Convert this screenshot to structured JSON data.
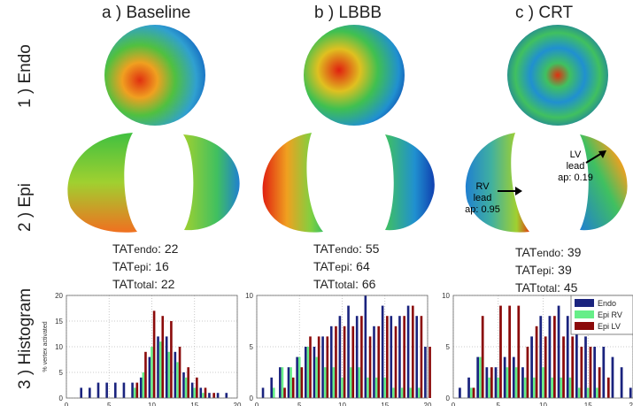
{
  "columns": [
    {
      "heading": "a ) Baseline",
      "tat": {
        "endo": "22",
        "epi": "16",
        "total": "22"
      }
    },
    {
      "heading": "b ) LBBB",
      "tat": {
        "endo": "55",
        "epi": "64",
        "total": "66"
      }
    },
    {
      "heading": "c ) CRT",
      "tat": {
        "endo": "39",
        "epi": "39",
        "total": "45"
      }
    }
  ],
  "rows": [
    "1 ) Endo",
    "2 ) Epi",
    "3 ) Histogram"
  ],
  "tat_prefix": "TAT",
  "tat_sub": {
    "endo": "endo",
    "epi": "epi",
    "total": "total"
  },
  "annotations": {
    "rv_lead": [
      "RV",
      "lead",
      "ap: 0.95"
    ],
    "lv_lead": [
      "LV",
      "lead",
      "ap: 0.19"
    ]
  },
  "histogram": {
    "ylabel": "% vertex activated",
    "legend": [
      "Endo",
      "Epi RV",
      "Epi LV"
    ],
    "colors": {
      "endo": "#1a237e",
      "epi_rv": "#66ee88",
      "epi_lv": "#8b0a0a"
    }
  },
  "chart_data": [
    {
      "type": "bar",
      "x": [
        2,
        3,
        4,
        5,
        6,
        7,
        8,
        9,
        10,
        11,
        12,
        13,
        14,
        15,
        16,
        17,
        18,
        19,
        20
      ],
      "xlim": [
        0,
        20
      ],
      "xticks": [
        0,
        5,
        10,
        15,
        20
      ],
      "ylim": [
        0,
        20
      ],
      "yticks": [
        0,
        5,
        10,
        15,
        20
      ],
      "ylabel": "% vertex activated",
      "series": [
        {
          "name": "Endo",
          "values": [
            2,
            2,
            3,
            3,
            3,
            3,
            3,
            4,
            8,
            12,
            12,
            9,
            5,
            3,
            2,
            1,
            1,
            1,
            0
          ]
        },
        {
          "name": "Epi RV",
          "values": [
            0,
            0,
            0,
            0,
            0,
            0,
            2,
            5,
            10,
            11,
            9,
            7,
            4,
            2,
            1,
            0,
            0,
            0,
            0
          ]
        },
        {
          "name": "Epi LV",
          "values": [
            0,
            0,
            0,
            0,
            0,
            0,
            3,
            9,
            17,
            16,
            15,
            10,
            6,
            4,
            2,
            1,
            0,
            0,
            0
          ]
        }
      ]
    },
    {
      "type": "bar",
      "x": [
        1,
        2,
        3,
        4,
        5,
        6,
        7,
        8,
        9,
        10,
        11,
        12,
        13,
        14,
        15,
        16,
        17,
        18,
        19,
        20
      ],
      "xlim": [
        0,
        20
      ],
      "xticks": [
        0,
        5,
        10,
        15,
        20
      ],
      "ylim": [
        0,
        10
      ],
      "yticks": [
        0,
        5,
        10
      ],
      "series": [
        {
          "name": "Endo",
          "values": [
            1,
            2,
            3,
            3,
            4,
            5,
            5,
            6,
            7,
            8,
            9,
            8,
            10,
            7,
            9,
            8,
            8,
            9,
            8,
            5
          ]
        },
        {
          "name": "Epi RV",
          "values": [
            0,
            1,
            3,
            3,
            4,
            5,
            4,
            3,
            3,
            2,
            3,
            3,
            2,
            2,
            2,
            1,
            1,
            1,
            1,
            0
          ]
        },
        {
          "name": "Epi LV",
          "values": [
            0,
            0,
            1,
            2,
            3,
            6,
            6,
            6,
            7,
            7,
            7,
            8,
            6,
            7,
            8,
            7,
            8,
            9,
            8,
            5
          ]
        }
      ]
    },
    {
      "type": "bar",
      "x": [
        1,
        2,
        3,
        4,
        5,
        6,
        7,
        8,
        9,
        10,
        11,
        12,
        13,
        14,
        15,
        16,
        17,
        18,
        19,
        20
      ],
      "xlim": [
        0,
        20
      ],
      "xticks": [
        0,
        5,
        10,
        15,
        20
      ],
      "ylim": [
        0,
        10
      ],
      "yticks": [
        0,
        5,
        10
      ],
      "series": [
        {
          "name": "Endo",
          "values": [
            1,
            2,
            4,
            3,
            3,
            4,
            4,
            3,
            6,
            8,
            8,
            9,
            8,
            7,
            6,
            5,
            5,
            4,
            3,
            1
          ]
        },
        {
          "name": "Epi RV",
          "values": [
            0,
            1,
            4,
            2,
            2,
            3,
            3,
            2,
            2,
            3,
            2,
            2,
            2,
            1,
            1,
            1,
            0,
            0,
            0,
            0
          ]
        },
        {
          "name": "Epi LV",
          "values": [
            0,
            1,
            8,
            3,
            9,
            9,
            9,
            5,
            7,
            6,
            8,
            6,
            6,
            5,
            5,
            3,
            2,
            0,
            0,
            0
          ]
        }
      ]
    }
  ]
}
